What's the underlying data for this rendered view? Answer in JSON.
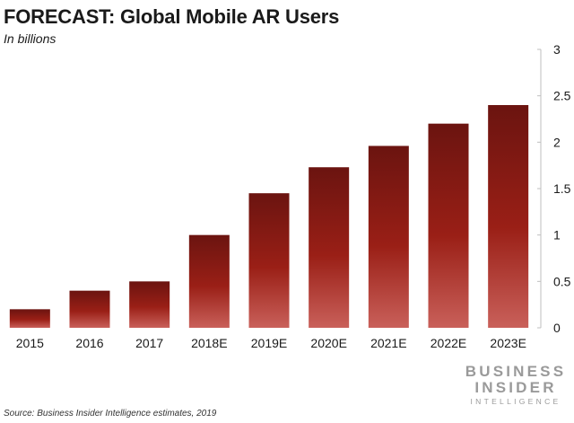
{
  "header": {
    "title": "FORECAST: Global Mobile AR Users",
    "subtitle": "In billions"
  },
  "footer": {
    "source": "Source: Business Insider Intelligence estimates, 2019"
  },
  "logo": {
    "line1": "BUSINESS",
    "line2": "INSIDER",
    "line3": "INTELLIGENCE"
  },
  "colors": {
    "bar_top": "#6b1410",
    "bar_mid": "#9a1f16",
    "bar_bottom": "#c9605a",
    "axis": "#bfbfbf"
  },
  "chart_data": {
    "type": "bar",
    "title": "FORECAST: Global Mobile AR Users",
    "subtitle": "In billions",
    "categories": [
      "2015",
      "2016",
      "2017",
      "2018E",
      "2019E",
      "2020E",
      "2021E",
      "2022E",
      "2023E"
    ],
    "values": [
      0.2,
      0.4,
      0.5,
      1.0,
      1.45,
      1.73,
      1.96,
      2.2,
      2.4
    ],
    "ylim": [
      0,
      3
    ],
    "yticks": [
      "0",
      "0.5",
      "1",
      "1.5",
      "2",
      "2.5",
      "3"
    ],
    "y_axis_position": "right",
    "grid": false,
    "legend": "none"
  }
}
